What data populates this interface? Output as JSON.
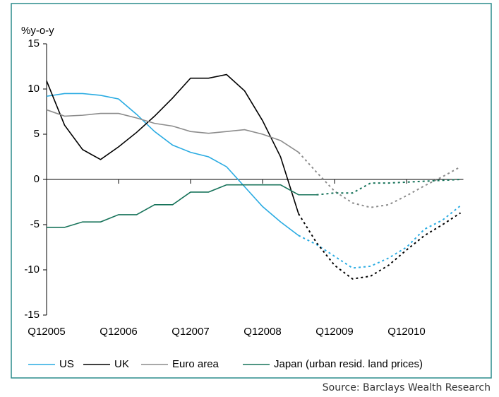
{
  "chart_data": {
    "type": "line",
    "y_label": "%y-o-y",
    "categories": [
      "Q12005",
      null,
      null,
      null,
      "Q12006",
      null,
      null,
      null,
      "Q12007",
      null,
      null,
      null,
      "Q12008",
      null,
      null,
      null,
      "Q12009",
      null,
      null,
      null,
      "Q12010",
      null,
      null,
      null
    ],
    "ylim": [
      -15,
      15
    ],
    "yticks": [
      -15,
      -10,
      -5,
      0,
      5,
      10,
      15
    ],
    "series": [
      {
        "name": "US",
        "color": "#29abe2",
        "values": [
          9.2,
          9.5,
          9.5,
          9.3,
          8.9,
          7.2,
          5.3,
          3.8,
          3.0,
          2.5,
          1.4,
          -0.8,
          -3.0,
          -4.7,
          -6.2,
          null,
          null,
          null,
          null,
          null,
          null,
          null,
          null,
          null
        ],
        "forecast_values": [
          null,
          null,
          null,
          null,
          null,
          null,
          null,
          null,
          null,
          null,
          null,
          null,
          null,
          null,
          -6.2,
          -7.2,
          -8.5,
          -9.8,
          -9.6,
          -8.7,
          -7.5,
          -5.5,
          -4.5,
          -2.9
        ]
      },
      {
        "name": "UK",
        "color": "#000000",
        "values": [
          10.9,
          6.0,
          3.3,
          2.2,
          3.6,
          5.2,
          7.0,
          9.0,
          11.2,
          11.2,
          11.6,
          9.8,
          6.5,
          2.5,
          -3.8,
          null,
          null,
          null,
          null,
          null,
          null,
          null,
          null,
          null
        ],
        "forecast_values": [
          null,
          null,
          null,
          null,
          null,
          null,
          null,
          null,
          null,
          null,
          null,
          null,
          null,
          null,
          -3.8,
          -7.0,
          -9.5,
          -11.0,
          -10.7,
          -9.5,
          -7.8,
          -6.2,
          -5.0,
          -3.7
        ]
      },
      {
        "name": "Euro area",
        "color": "#8c8c8c",
        "values": [
          7.7,
          7.0,
          7.1,
          7.3,
          7.3,
          6.8,
          6.2,
          5.9,
          5.3,
          5.1,
          5.3,
          5.5,
          5.0,
          4.3,
          3.0,
          null,
          null,
          null,
          null,
          null,
          null,
          null,
          null,
          null
        ],
        "forecast_values": [
          null,
          null,
          null,
          null,
          null,
          null,
          null,
          null,
          null,
          null,
          null,
          null,
          null,
          null,
          3.0,
          0.8,
          -1.3,
          -2.6,
          -3.1,
          -2.8,
          -1.8,
          -0.7,
          0.3,
          1.4
        ]
      },
      {
        "name": "Japan (urban resid. land prices)",
        "color": "#17735a",
        "values": [
          -5.3,
          -5.3,
          -4.7,
          -4.7,
          -3.9,
          -3.9,
          -2.8,
          -2.8,
          -1.4,
          -1.4,
          -0.6,
          -0.6,
          -0.6,
          -0.6,
          -1.7,
          -1.7,
          null,
          null,
          null,
          null,
          null,
          null,
          null,
          null
        ],
        "forecast_values": [
          null,
          null,
          null,
          null,
          null,
          null,
          null,
          null,
          null,
          null,
          null,
          null,
          null,
          null,
          null,
          -1.7,
          -1.5,
          -1.5,
          -0.4,
          -0.4,
          -0.3,
          -0.2,
          -0.1,
          0.0
        ]
      }
    ],
    "source": "Source: Barclays Wealth Research"
  }
}
